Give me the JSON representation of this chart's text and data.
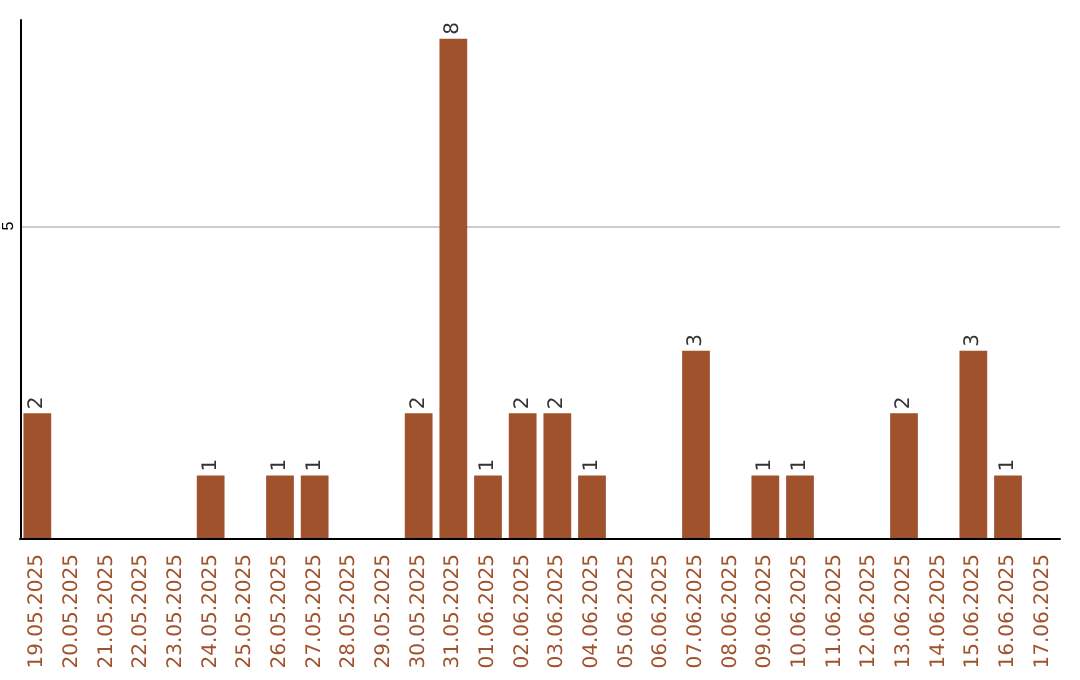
{
  "chart_data": {
    "type": "bar",
    "categories": [
      "19.05.2025",
      "20.05.2025",
      "21.05.2025",
      "22.05.2025",
      "23.05.2025",
      "24.05.2025",
      "25.05.2025",
      "26.05.2025",
      "27.05.2025",
      "28.05.2025",
      "29.05.2025",
      "30.05.2025",
      "31.05.2025",
      "01.06.2025",
      "02.06.2025",
      "03.06.2025",
      "04.06.2025",
      "05.06.2025",
      "06.06.2025",
      "07.06.2025",
      "08.06.2025",
      "09.06.2025",
      "10.06.2025",
      "11.06.2025",
      "12.06.2025",
      "13.06.2025",
      "14.06.2025",
      "15.06.2025",
      "16.06.2025",
      "17.06.2025"
    ],
    "values": [
      2,
      0,
      0,
      0,
      0,
      1,
      0,
      1,
      1,
      0,
      0,
      2,
      8,
      1,
      2,
      2,
      1,
      0,
      0,
      3,
      0,
      1,
      1,
      0,
      0,
      2,
      0,
      3,
      1,
      0
    ],
    "value_labels": [
      "2",
      null,
      null,
      null,
      null,
      "1",
      null,
      "1",
      "1",
      null,
      null,
      "2",
      "8",
      "1",
      "2",
      "2",
      "1",
      null,
      null,
      "3",
      null,
      "1",
      "1",
      null,
      null,
      "2",
      null,
      "3",
      "1",
      null
    ],
    "color": "#a0522d",
    "ylim": [
      0,
      8.3
    ],
    "yticks": [
      5
    ],
    "grid": "y"
  }
}
